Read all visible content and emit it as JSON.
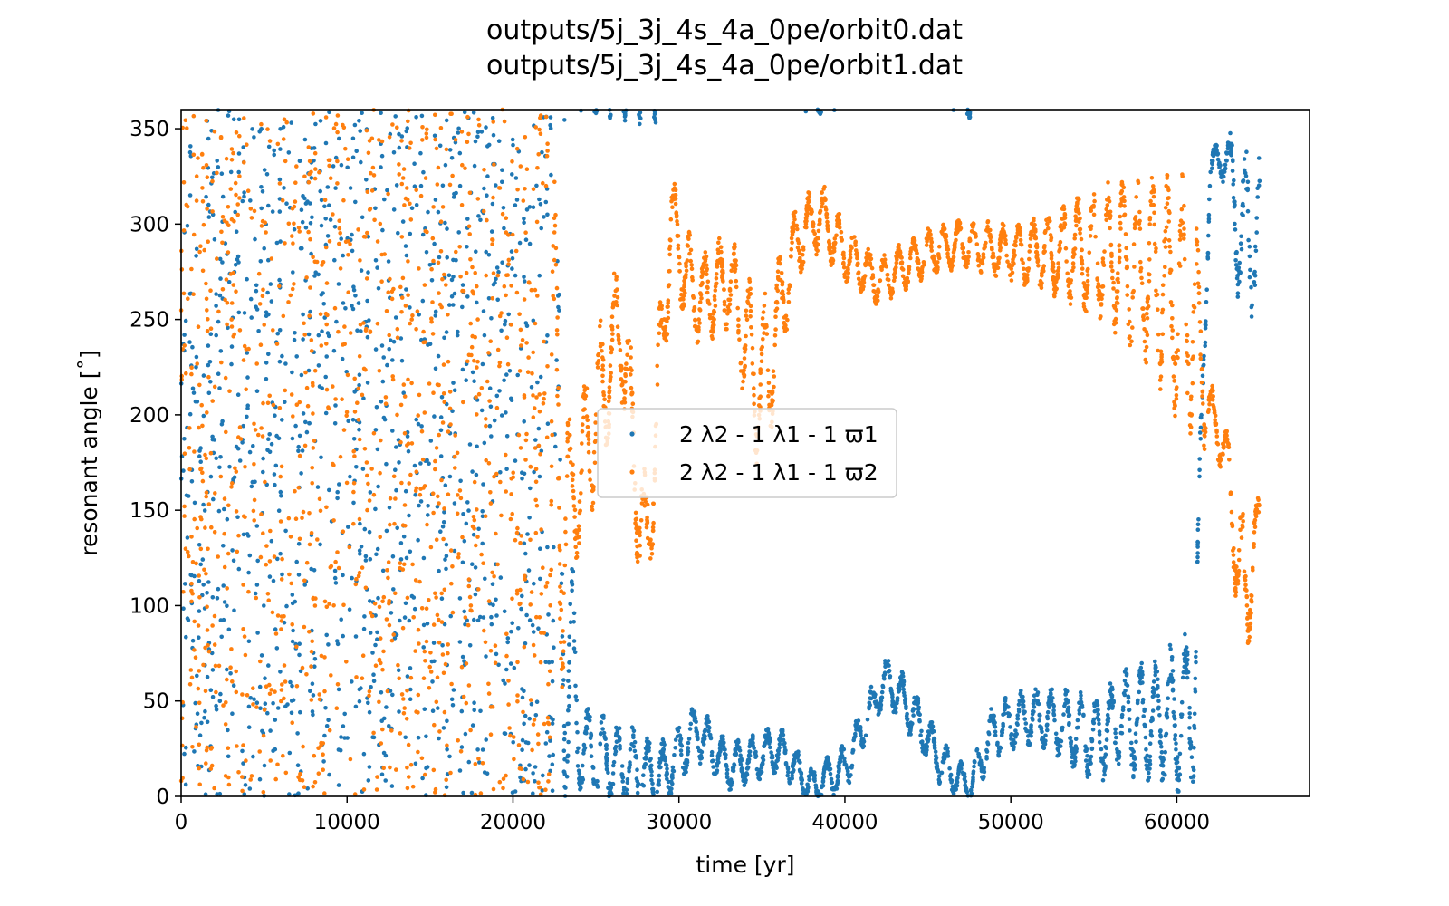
{
  "chart_data": {
    "type": "scatter",
    "title": [
      "outputs/5j_3j_4s_4a_0pe/orbit0.dat",
      "outputs/5j_3j_4s_4a_0pe/orbit1.dat"
    ],
    "xlabel": "time [yr]",
    "ylabel": "resonant angle [˚]",
    "xlim": [
      0,
      68000
    ],
    "ylim": [
      0,
      360
    ],
    "xticks": [
      "0",
      "10000",
      "20000",
      "30000",
      "40000",
      "50000",
      "60000"
    ],
    "yticks": [
      "0",
      "50",
      "100",
      "150",
      "200",
      "250",
      "300",
      "350"
    ],
    "grid": false,
    "legend_position": "center",
    "series": [
      {
        "name": "2 λ2 - 1 λ1 - 1 ϖ1",
        "color": "#1f77b4",
        "regime": "circulating 0–20000 yr, librating about 0° after ~24000 yr, ending near 330° at ~62000–65000 yr",
        "center": [
          [
            0,
            180
          ],
          [
            22000,
            180
          ],
          [
            24000,
            25
          ],
          [
            27000,
            15
          ],
          [
            29000,
            10
          ],
          [
            31000,
            35
          ],
          [
            33000,
            15
          ],
          [
            36000,
            25
          ],
          [
            38000,
            5
          ],
          [
            40000,
            15
          ],
          [
            42500,
            62
          ],
          [
            44000,
            45
          ],
          [
            46000,
            15
          ],
          [
            47500,
            5
          ],
          [
            49000,
            35
          ],
          [
            51000,
            42
          ],
          [
            53000,
            38
          ],
          [
            55000,
            30
          ],
          [
            57000,
            40
          ],
          [
            59000,
            40
          ],
          [
            61000,
            45
          ],
          [
            62000,
            330
          ],
          [
            63000,
            335
          ],
          [
            64000,
            290
          ],
          [
            65000,
            300
          ]
        ],
        "amplitude": [
          [
            0,
            180
          ],
          [
            22000,
            180
          ],
          [
            24000,
            20
          ],
          [
            27000,
            18
          ],
          [
            29000,
            15
          ],
          [
            31000,
            12
          ],
          [
            33000,
            10
          ],
          [
            36000,
            10
          ],
          [
            38000,
            8
          ],
          [
            40000,
            10
          ],
          [
            42500,
            10
          ],
          [
            44000,
            12
          ],
          [
            46000,
            10
          ],
          [
            47500,
            8
          ],
          [
            49000,
            12
          ],
          [
            51000,
            12
          ],
          [
            53000,
            15
          ],
          [
            55000,
            18
          ],
          [
            57000,
            22
          ],
          [
            59000,
            28
          ],
          [
            61000,
            35
          ],
          [
            62000,
            8
          ],
          [
            63000,
            10
          ],
          [
            64000,
            45
          ],
          [
            65000,
            30
          ]
        ]
      },
      {
        "name": "2 λ2 - 1 λ1 - 1 ϖ2",
        "color": "#ff7f0e",
        "regime": "circulating 0–22000 yr, librating about ~270° after ~29000 yr, circulating again after ~62000 yr",
        "center": [
          [
            0,
            180
          ],
          [
            22000,
            180
          ],
          [
            23500,
            150
          ],
          [
            25000,
            200
          ],
          [
            26500,
            250
          ],
          [
            28000,
            120
          ],
          [
            29500,
            300
          ],
          [
            31000,
            260
          ],
          [
            33000,
            270
          ],
          [
            35000,
            210
          ],
          [
            37000,
            290
          ],
          [
            38500,
            305
          ],
          [
            40000,
            285
          ],
          [
            42000,
            270
          ],
          [
            45000,
            285
          ],
          [
            47000,
            290
          ],
          [
            50000,
            285
          ],
          [
            53000,
            285
          ],
          [
            56000,
            285
          ],
          [
            59000,
            270
          ],
          [
            61000,
            255
          ],
          [
            62000,
            200
          ],
          [
            63000,
            180
          ],
          [
            64000,
            100
          ],
          [
            65000,
            145
          ]
        ],
        "amplitude": [
          [
            0,
            180
          ],
          [
            22000,
            180
          ],
          [
            23500,
            30
          ],
          [
            25000,
            35
          ],
          [
            26500,
            30
          ],
          [
            28000,
            35
          ],
          [
            29500,
            25
          ],
          [
            31000,
            20
          ],
          [
            33000,
            20
          ],
          [
            35000,
            40
          ],
          [
            37000,
            15
          ],
          [
            38500,
            15
          ],
          [
            40000,
            12
          ],
          [
            42000,
            10
          ],
          [
            45000,
            10
          ],
          [
            47000,
            10
          ],
          [
            50000,
            12
          ],
          [
            53000,
            20
          ],
          [
            56000,
            30
          ],
          [
            59000,
            45
          ],
          [
            61000,
            55
          ],
          [
            62000,
            15
          ],
          [
            63000,
            10
          ],
          [
            64000,
            40
          ],
          [
            65000,
            10
          ]
        ]
      }
    ]
  }
}
